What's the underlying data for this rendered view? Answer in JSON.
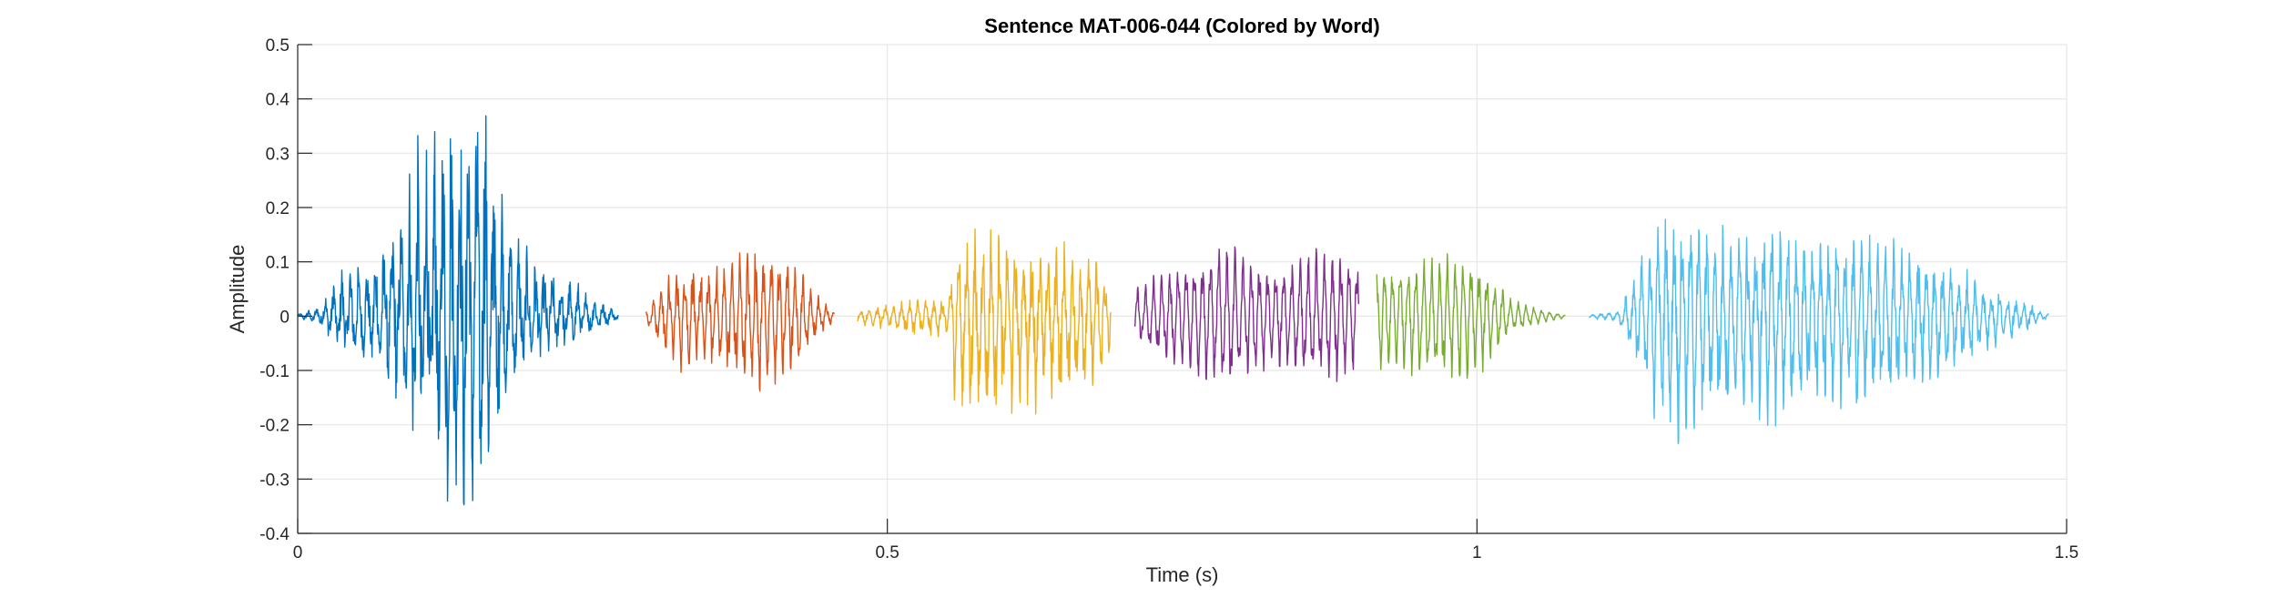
{
  "chart_data": {
    "type": "line",
    "title": "Sentence MAT-006-044 (Colored by Word)",
    "xlabel": "Time (s)",
    "ylabel": "Amplitude",
    "xlim": [
      0,
      1.5
    ],
    "ylim": [
      -0.4,
      0.5
    ],
    "xticks": [
      0,
      0.5,
      1,
      1.5
    ],
    "xtick_labels": [
      "0",
      "0.5",
      "1",
      "1.5"
    ],
    "yticks": [
      -0.4,
      -0.3,
      -0.2,
      -0.1,
      0,
      0.1,
      0.2,
      0.3,
      0.4,
      0.5
    ],
    "ytick_labels": [
      "-0.4",
      "-0.3",
      "-0.2",
      "-0.1",
      "0",
      "0.1",
      "0.2",
      "0.3",
      "0.4",
      "0.5"
    ],
    "grid": true,
    "series": [
      {
        "color": "#0072BD",
        "start": 0.0,
        "end": 0.272,
        "envelope": [
          [
            0.0,
            0.003
          ],
          [
            0.02,
            0.02
          ],
          [
            0.035,
            0.08
          ],
          [
            0.06,
            0.09
          ],
          [
            0.08,
            0.15
          ],
          [
            0.1,
            0.27
          ],
          [
            0.115,
            0.33
          ],
          [
            0.13,
            0.38
          ],
          [
            0.145,
            0.41
          ],
          [
            0.16,
            0.37
          ],
          [
            0.175,
            0.2
          ],
          [
            0.19,
            0.12
          ],
          [
            0.21,
            0.08
          ],
          [
            0.235,
            0.06
          ],
          [
            0.255,
            0.03
          ],
          [
            0.272,
            0.01
          ]
        ],
        "asym": 0.85,
        "freq": 140,
        "noise": 0.55
      },
      {
        "color": "#D95319",
        "start": 0.295,
        "end": 0.455,
        "envelope": [
          [
            0.295,
            0.01
          ],
          [
            0.31,
            0.07
          ],
          [
            0.33,
            0.1
          ],
          [
            0.35,
            0.09
          ],
          [
            0.37,
            0.11
          ],
          [
            0.39,
            0.13
          ],
          [
            0.41,
            0.12
          ],
          [
            0.425,
            0.09
          ],
          [
            0.44,
            0.04
          ],
          [
            0.455,
            0.01
          ]
        ],
        "asym": 1.05,
        "freq": 150,
        "noise": 0.25
      },
      {
        "color": "#EDB120",
        "start": 0.475,
        "end": 0.69,
        "envelope": [
          [
            0.475,
            0.01
          ],
          [
            0.5,
            0.02
          ],
          [
            0.53,
            0.03
          ],
          [
            0.55,
            0.03
          ],
          [
            0.56,
            0.14
          ],
          [
            0.58,
            0.16
          ],
          [
            0.6,
            0.14
          ],
          [
            0.62,
            0.12
          ],
          [
            0.64,
            0.13
          ],
          [
            0.66,
            0.12
          ],
          [
            0.68,
            0.1
          ],
          [
            0.69,
            0.05
          ]
        ],
        "asym": 1.3,
        "freq": 145,
        "noise": 0.35
      },
      {
        "color": "#7E2F8E",
        "start": 0.71,
        "end": 0.9,
        "envelope": [
          [
            0.71,
            0.05
          ],
          [
            0.73,
            0.08
          ],
          [
            0.76,
            0.11
          ],
          [
            0.79,
            0.14
          ],
          [
            0.81,
            0.11
          ],
          [
            0.83,
            0.09
          ],
          [
            0.86,
            0.12
          ],
          [
            0.88,
            0.13
          ],
          [
            0.9,
            0.1
          ]
        ],
        "asym": 1.0,
        "freq": 145,
        "noise": 0.15
      },
      {
        "color": "#77AC30",
        "start": 0.915,
        "end": 1.075,
        "envelope": [
          [
            0.915,
            0.1
          ],
          [
            0.94,
            0.1
          ],
          [
            0.97,
            0.11
          ],
          [
            0.99,
            0.12
          ],
          [
            1.01,
            0.08
          ],
          [
            1.03,
            0.03
          ],
          [
            1.05,
            0.015
          ],
          [
            1.075,
            0.003
          ]
        ],
        "asym": 1.1,
        "freq": 150,
        "noise": 0.15
      },
      {
        "color": "#4DBEEE",
        "start": 1.095,
        "end": 1.485,
        "envelope": [
          [
            1.095,
            0.003
          ],
          [
            1.12,
            0.01
          ],
          [
            1.135,
            0.08
          ],
          [
            1.15,
            0.18
          ],
          [
            1.17,
            0.19
          ],
          [
            1.2,
            0.16
          ],
          [
            1.23,
            0.15
          ],
          [
            1.26,
            0.17
          ],
          [
            1.29,
            0.14
          ],
          [
            1.32,
            0.15
          ],
          [
            1.36,
            0.13
          ],
          [
            1.4,
            0.1
          ],
          [
            1.43,
            0.06
          ],
          [
            1.46,
            0.03
          ],
          [
            1.485,
            0.004
          ]
        ],
        "asym": 1.15,
        "freq": 145,
        "noise": 0.3
      }
    ]
  }
}
